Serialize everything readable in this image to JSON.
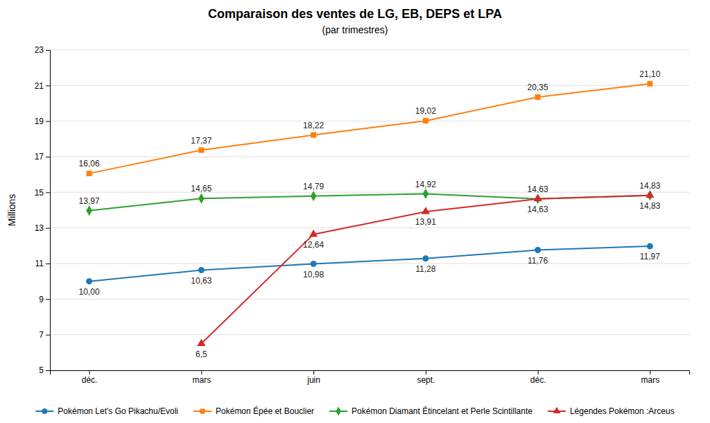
{
  "chart_data": {
    "type": "line",
    "title": "Comparaison des ventes de LG, EB, DEPS et LPA",
    "subtitle": "(par trimestres)",
    "y_label": "Millions",
    "categories": [
      "déc.",
      "mars",
      "juin",
      "sept.",
      "déc.",
      "mars"
    ],
    "ylim": [
      5,
      23
    ],
    "yticks": [
      5,
      7,
      9,
      11,
      13,
      15,
      17,
      19,
      21,
      23
    ],
    "grid": true,
    "legend": "bottom",
    "data_labels": true,
    "series": [
      {
        "name": "Pokémon Let's Go Pikachu/Evoli",
        "marker": "circle",
        "line_style": "solid",
        "values": [
          10.0,
          10.63,
          10.98,
          11.28,
          11.76,
          11.97
        ],
        "value_labels": [
          "10,00",
          "10,63",
          "10,98",
          "11,28",
          "11,76",
          "11,97"
        ]
      },
      {
        "name": "Pokémon Épée et Bouclier",
        "marker": "square",
        "line_style": "solid",
        "values": [
          16.06,
          17.37,
          18.22,
          19.02,
          20.35,
          21.1
        ],
        "value_labels": [
          "16,06",
          "17,37",
          "18,22",
          "19,02",
          "20,35",
          "21,10"
        ]
      },
      {
        "name": "Pokémon Diamant Étincelant et Perle Scintillante",
        "marker": "diamond",
        "line_style": "solid",
        "values": [
          13.97,
          14.65,
          14.79,
          14.92,
          14.63,
          14.83
        ],
        "value_labels": [
          "13,97",
          "14,65",
          "14,79",
          "14,92",
          "14,63",
          "14,83"
        ]
      },
      {
        "name": "Légendes Pokémon :Arceus",
        "marker": "triangle",
        "line_style": "solid",
        "values": [
          null,
          6.5,
          12.64,
          13.91,
          14.63,
          14.83
        ],
        "value_labels": [
          null,
          "6,5",
          "12,64",
          "13,91",
          "14,63",
          "14,83"
        ]
      }
    ]
  }
}
